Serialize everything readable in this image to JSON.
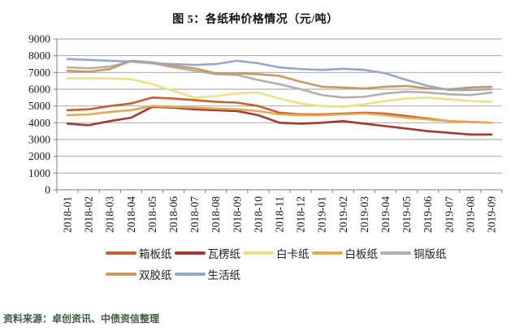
{
  "figure": {
    "title": "图 5：各纸种价格情况（元/吨）",
    "source": "资料来源：卓创资讯、中债资信整理"
  },
  "colors": {
    "grid": "#9E9E9E",
    "axis": "#7F7F7F",
    "title_text": "#111111",
    "source_text": "#3E5C44"
  },
  "chart_data": {
    "type": "line",
    "title": "图 5：各纸种价格情况（元/吨）",
    "unit": "元/吨",
    "xlabel": "",
    "ylabel": "",
    "ylim": [
      0,
      9000
    ],
    "ytick_step": 1000,
    "grid": true,
    "legend_position": "bottom",
    "x": [
      "2018-01",
      "2018-02",
      "2018-03",
      "2018-04",
      "2018-05",
      "2018-06",
      "2018-07",
      "2018-08",
      "2018-09",
      "2018-10",
      "2018-11",
      "2018-12",
      "2019-01",
      "2019-02",
      "2019-03",
      "2019-04",
      "2019-05",
      "2019-06",
      "2019-07",
      "2019-08",
      "2019-09"
    ],
    "series": [
      {
        "name": "箱板纸",
        "color": "#C9612F",
        "values": [
          4750,
          4800,
          5000,
          5150,
          5500,
          5450,
          5350,
          5250,
          5200,
          5000,
          4600,
          4500,
          4500,
          4550,
          4600,
          4550,
          4400,
          4250,
          4100,
          4050,
          4000
        ]
      },
      {
        "name": "瓦楞纸",
        "color": "#A83732",
        "values": [
          3950,
          3850,
          4100,
          4300,
          4950,
          4900,
          4800,
          4750,
          4700,
          4450,
          4000,
          3950,
          4000,
          4100,
          3950,
          3800,
          3650,
          3500,
          3400,
          3300,
          3300
        ]
      },
      {
        "name": "白卡纸",
        "color": "#EFE183",
        "values": [
          6650,
          6650,
          6650,
          6600,
          6300,
          5900,
          5500,
          5600,
          5750,
          5800,
          5450,
          5150,
          5000,
          4950,
          5100,
          5300,
          5450,
          5500,
          5400,
          5300,
          5250
        ]
      },
      {
        "name": "白板纸",
        "color": "#E6A94E",
        "values": [
          4450,
          4500,
          4650,
          4750,
          5000,
          4950,
          4900,
          4850,
          4800,
          4700,
          4500,
          4450,
          4450,
          4500,
          4550,
          4450,
          4300,
          4200,
          4100,
          4050,
          4000
        ]
      },
      {
        "name": "铜版纸",
        "color": "#B3B0AC",
        "values": [
          7300,
          7250,
          7350,
          7650,
          7550,
          7300,
          7100,
          6900,
          6850,
          6550,
          6300,
          6000,
          5650,
          5500,
          5550,
          5750,
          5850,
          5800,
          5700,
          5650,
          5800
        ]
      },
      {
        "name": "双胶纸",
        "color": "#C89A62",
        "values": [
          7100,
          7050,
          7200,
          7700,
          7600,
          7400,
          7250,
          6950,
          6950,
          6900,
          6800,
          6450,
          6150,
          6100,
          6050,
          6150,
          6200,
          6050,
          6000,
          6100,
          6150
        ]
      },
      {
        "name": "生活纸",
        "color": "#96A8C8",
        "values": [
          7800,
          7750,
          7700,
          7650,
          7550,
          7500,
          7450,
          7500,
          7700,
          7550,
          7300,
          7200,
          7150,
          7220,
          7150,
          6950,
          6550,
          6200,
          5950,
          5950,
          6000
        ]
      }
    ]
  }
}
